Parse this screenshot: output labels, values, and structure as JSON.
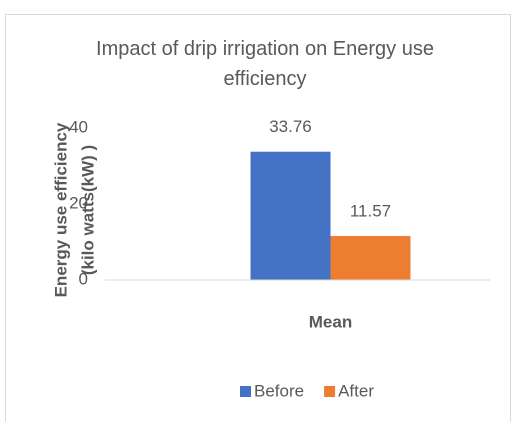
{
  "chart_data": {
    "type": "bar",
    "title": "Impact of drip irrigation on Energy use efficiency",
    "ylabel": [
      "Energy use efficiency",
      "(kilo watts(kW) )"
    ],
    "categories": [
      "Mean"
    ],
    "series": [
      {
        "name": "Before",
        "color": "#4472c4",
        "values": [
          33.76
        ]
      },
      {
        "name": "After",
        "color": "#ed7d31",
        "values": [
          11.57
        ]
      }
    ],
    "ylim": [
      0,
      40
    ],
    "yticks": [
      0,
      20,
      40
    ],
    "grid": false,
    "legend": "bottom"
  }
}
